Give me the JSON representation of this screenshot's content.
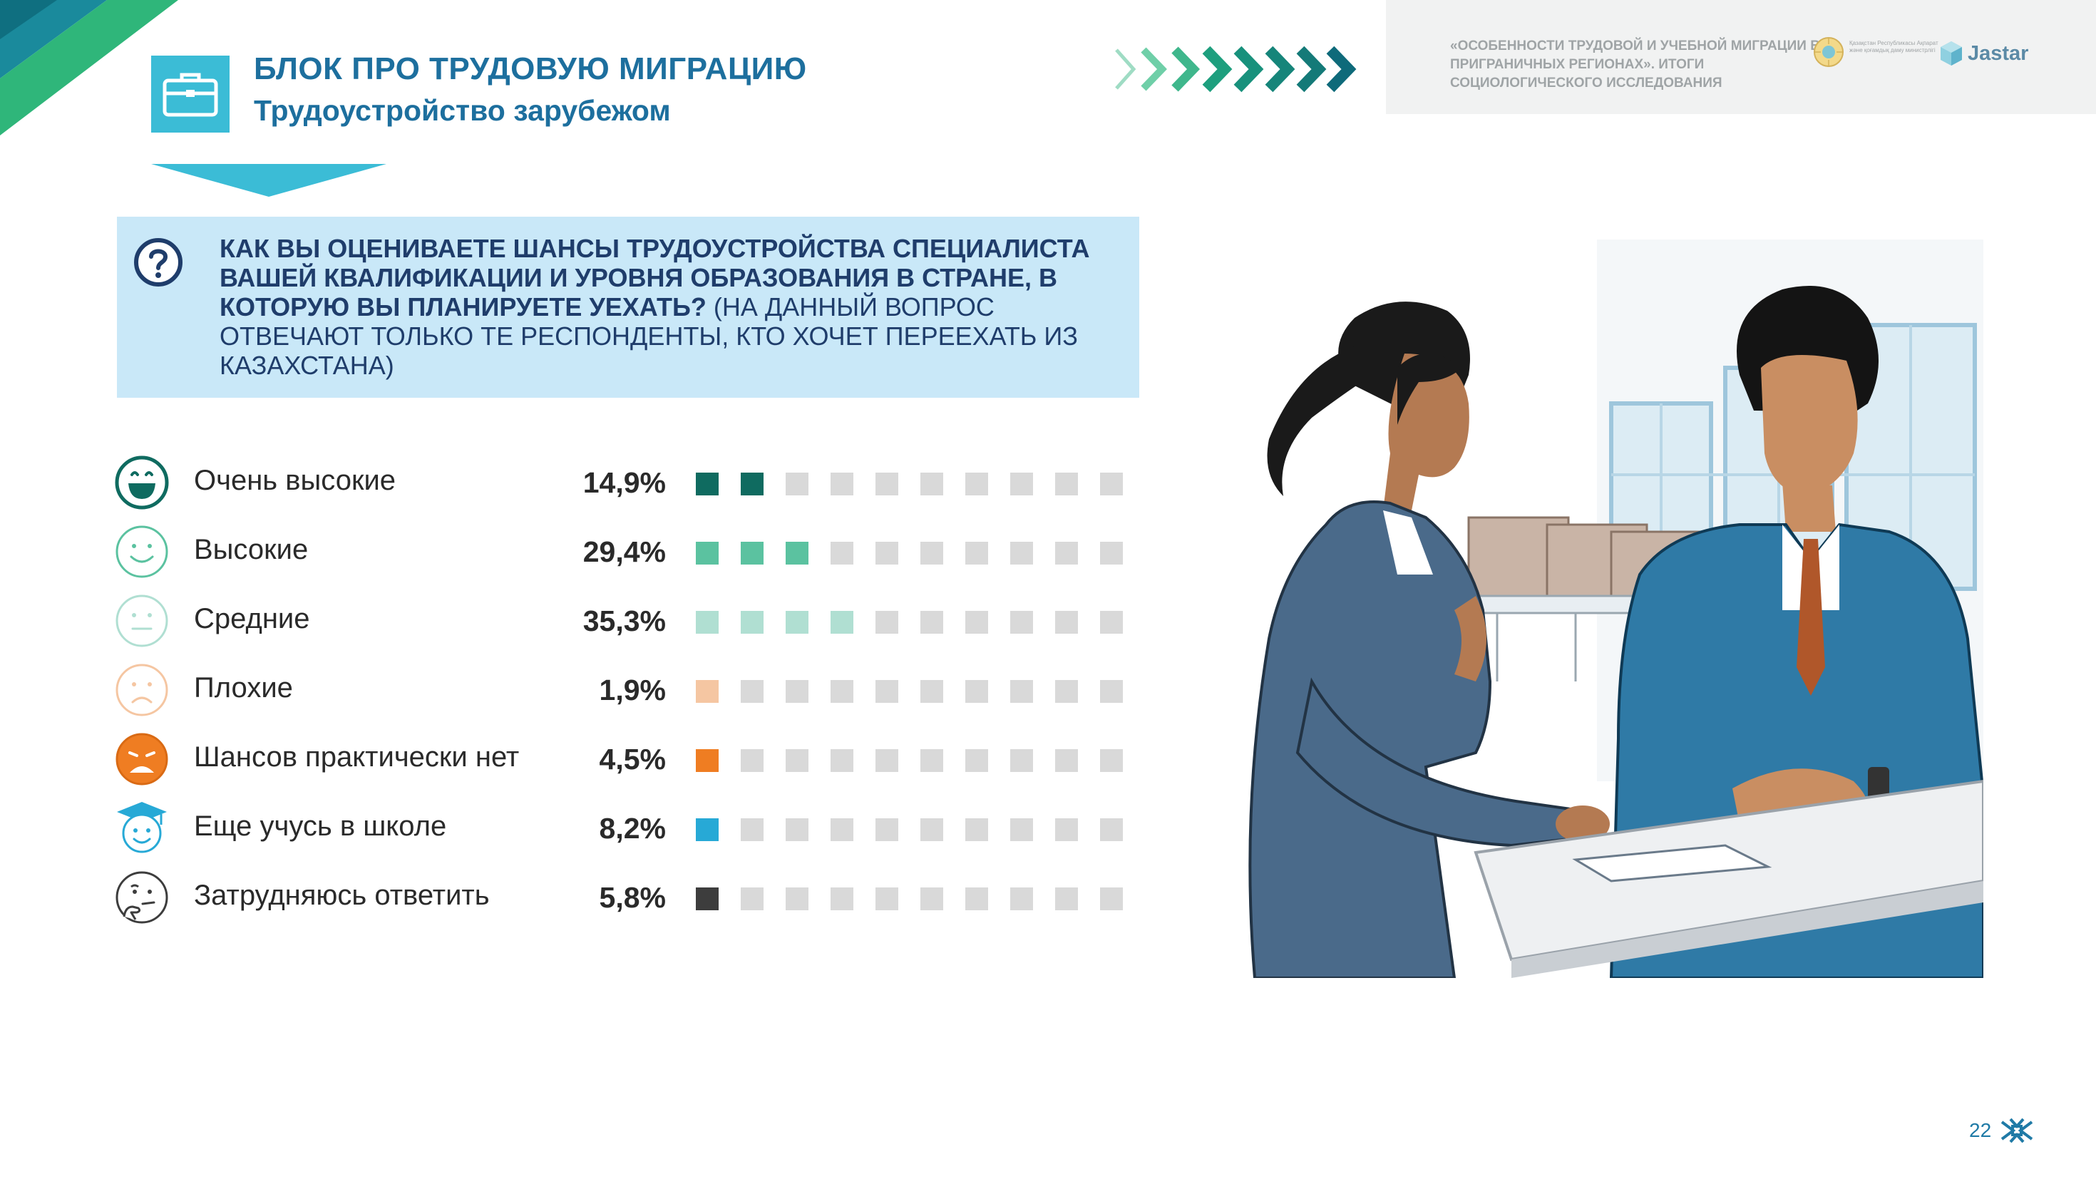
{
  "header": {
    "title": "БЛОК ПРО ТРУДОВУЮ МИГРАЦИЮ",
    "subtitle": "Трудоустройство зарубежом",
    "icon": "briefcase-icon"
  },
  "study": {
    "text": "«ОСОБЕННОСТИ ТРУДОВОЙ И УЧЕБНОЙ МИГРАЦИИ В ПРИГРАНИЧНЫХ РЕГИОНАХ». ИТОГИ СОЦИОЛОГИЧЕСКОГО ИССЛЕДОВАНИЯ",
    "ministry_text": "Қазақстан Республикасы Ақпарат және қоғамдық даму министрлігі",
    "logo_text": "Jastar"
  },
  "question": {
    "main": "КАК ВЫ ОЦЕНИВАЕТЕ ШАНСЫ ТРУДОУСТРОЙСТВА СПЕЦИАЛИСТА ВАШЕЙ КВАЛИФИКАЦИИ И УРОВНЯ ОБРАЗОВАНИЯ В СТРАНЕ, В КОТОРУЮ ВЫ ПЛАНИРУЕТЕ УЕХАТЬ?",
    "note": "(НА ДАННЫЙ ВОПРОС ОТВЕЧАЮТ ТОЛЬКО ТЕ РЕСПОНДЕНТЫ, КТО ХОЧЕТ ПЕРЕЕХАТЬ ИЗ КАЗАХСТАНА)"
  },
  "chart_data": {
    "type": "bar",
    "categories": [
      "Очень высокие",
      "Высокие",
      "Средние",
      "Плохие",
      "Шансов практически нет",
      "Еще учусь в школе",
      "Затрудняюсь ответить"
    ],
    "values": [
      14.9,
      29.4,
      35.3,
      1.9,
      4.5,
      8.2,
      5.8
    ],
    "value_labels": [
      "14,9%",
      "29,4%",
      "35,3%",
      "1,9%",
      "4,5%",
      "8,2%",
      "5,8%"
    ],
    "filled_squares": [
      2,
      3,
      4,
      1,
      1,
      1,
      1
    ],
    "total_squares": 10,
    "colors": [
      "#0f6b60",
      "#5bc2a0",
      "#b0dfd2",
      "#f5c6a2",
      "#ef7d22",
      "#27a9d6",
      "#3d3d3d"
    ],
    "empty_color": "#d9d9d9",
    "icons": [
      "very-happy-face-icon",
      "smile-face-icon",
      "neutral-face-icon",
      "sad-face-icon",
      "frowning-face-icon",
      "graduate-face-icon",
      "thinking-face-icon"
    ]
  },
  "page": {
    "number": "22"
  }
}
